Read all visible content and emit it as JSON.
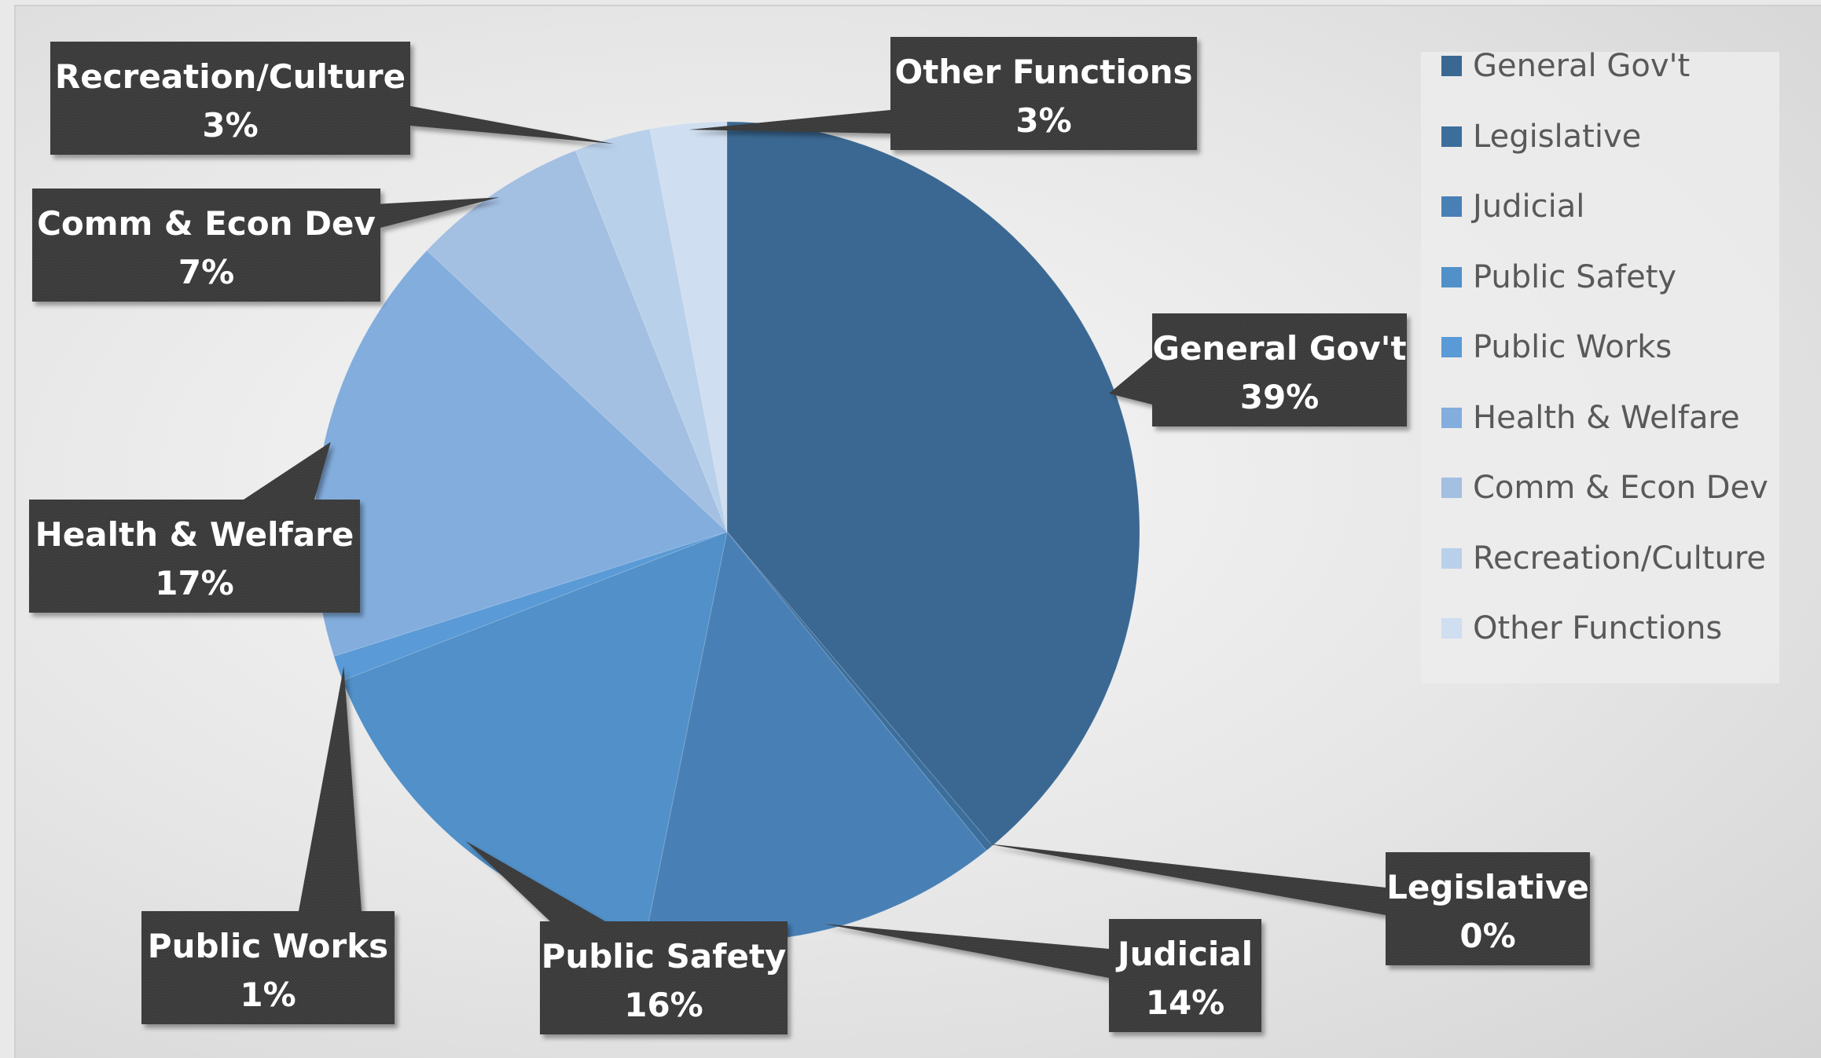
{
  "chart_data": {
    "type": "pie",
    "title": "",
    "categories": [
      "General Gov't",
      "Legislative",
      "Judicial",
      "Public Safety",
      "Public Works",
      "Health & Welfare",
      "Comm & Econ Dev",
      "Recreation/Culture",
      "Other Functions"
    ],
    "values": [
      39,
      0.3,
      14,
      16,
      1,
      17,
      7,
      3,
      3
    ],
    "data_labels": [
      "39%",
      "0%",
      "14%",
      "16%",
      "1%",
      "17%",
      "7%",
      "3%",
      "3%"
    ],
    "colors": [
      "#3a6892",
      "#3c6e9c",
      "#4880b6",
      "#5190c8",
      "#5a9ad6",
      "#82addd",
      "#a3bfe2",
      "#b9d0ea",
      "#cfdef0"
    ],
    "legend_position": "right",
    "start_angle_deg": 0,
    "direction": "clockwise"
  }
}
